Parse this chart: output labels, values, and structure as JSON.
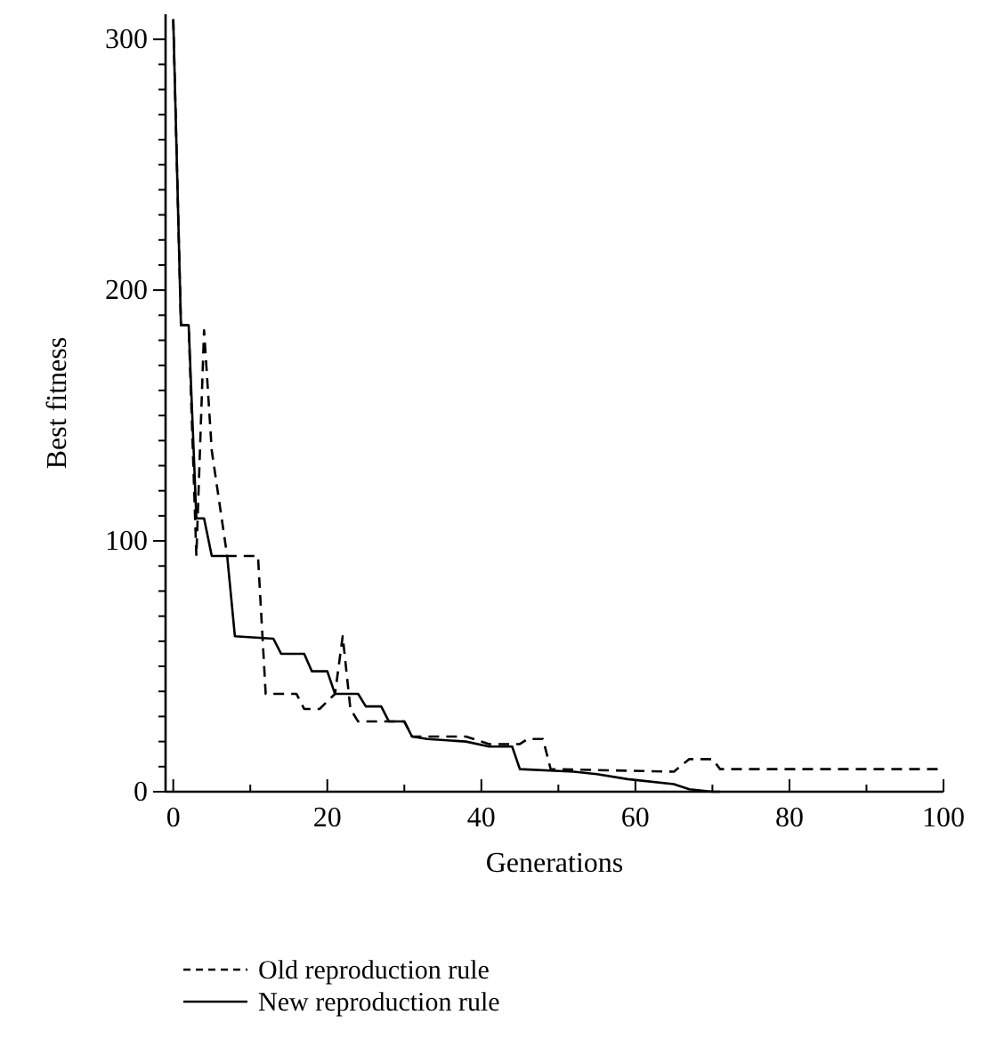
{
  "chart_data": {
    "type": "line",
    "xlabel": "Generations",
    "ylabel": "Best fitness",
    "xlim": [
      -1,
      100
    ],
    "ylim": [
      0,
      310
    ],
    "xticks": [
      0,
      {
        "value": 10,
        "label": null
      },
      20,
      {
        "value": 30,
        "label": null
      },
      40,
      {
        "value": 50,
        "label": null
      },
      60,
      {
        "value": 70,
        "label": null
      },
      80,
      {
        "value": 90,
        "label": null
      },
      100
    ],
    "yticks": [
      0,
      {
        "value": 10,
        "label": null
      },
      {
        "value": 20,
        "label": null
      },
      {
        "value": 30,
        "label": null
      },
      {
        "value": 40,
        "label": null
      },
      {
        "value": 50,
        "label": null
      },
      {
        "value": 60,
        "label": null
      },
      {
        "value": 70,
        "label": null
      },
      {
        "value": 80,
        "label": null
      },
      {
        "value": 90,
        "label": null
      },
      100,
      {
        "value": 110,
        "label": null
      },
      {
        "value": 120,
        "label": null
      },
      {
        "value": 130,
        "label": null
      },
      {
        "value": 140,
        "label": null
      },
      {
        "value": 150,
        "label": null
      },
      {
        "value": 160,
        "label": null
      },
      {
        "value": 170,
        "label": null
      },
      {
        "value": 180,
        "label": null
      },
      {
        "value": 190,
        "label": null
      },
      200,
      {
        "value": 210,
        "label": null
      },
      {
        "value": 220,
        "label": null
      },
      {
        "value": 230,
        "label": null
      },
      {
        "value": 240,
        "label": null
      },
      {
        "value": 250,
        "label": null
      },
      {
        "value": 260,
        "label": null
      },
      {
        "value": 270,
        "label": null
      },
      {
        "value": 280,
        "label": null
      },
      {
        "value": 290,
        "label": null
      },
      300
    ],
    "grid": false,
    "legend": "bottom",
    "marker": "none",
    "series": [
      {
        "name": "Old reproduction rule",
        "color": "#000000",
        "line_style": "dashed",
        "x": [
          0,
          1,
          2,
          3,
          4,
          5,
          7,
          11,
          12,
          13,
          16,
          17,
          19,
          21,
          22,
          23,
          24,
          30,
          31,
          33,
          38,
          41,
          45,
          46,
          48,
          49,
          65,
          67,
          70,
          71,
          100
        ],
        "values": [
          308,
          186,
          186,
          94,
          184,
          136,
          94,
          94,
          39,
          39,
          39,
          33,
          33,
          39,
          62,
          33,
          28,
          28,
          22,
          22,
          22,
          19,
          19,
          21,
          21,
          9,
          8,
          13,
          13,
          9,
          9
        ]
      },
      {
        "name": "New reproduction rule",
        "color": "#000000",
        "line_style": "solid",
        "x": [
          0,
          1,
          2,
          3,
          4,
          5,
          7,
          8,
          13,
          14,
          17,
          18,
          20,
          21,
          24,
          25,
          27,
          28,
          30,
          31,
          33,
          38,
          41,
          44,
          45,
          52,
          55,
          59,
          65,
          67,
          70,
          71
        ],
        "values": [
          308,
          186,
          186,
          109,
          109,
          94,
          94,
          62,
          61,
          55,
          55,
          48,
          48,
          39,
          39,
          34,
          34,
          28,
          28,
          22,
          21,
          20,
          18,
          18,
          9,
          8,
          7,
          5,
          3,
          1,
          0,
          0
        ]
      }
    ]
  }
}
